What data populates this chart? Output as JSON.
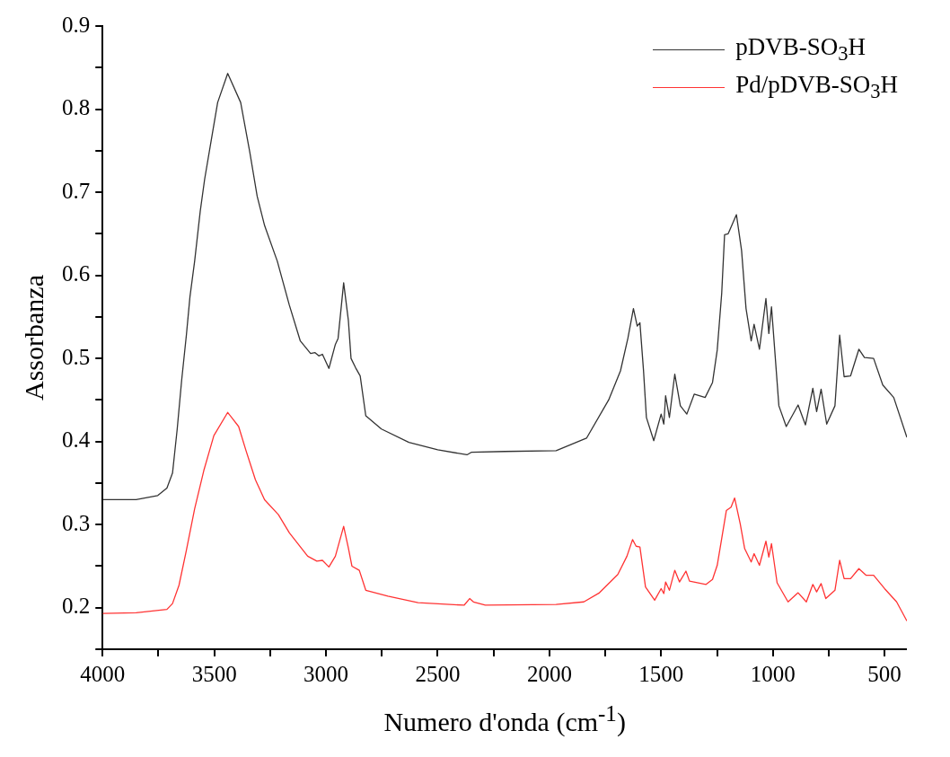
{
  "chart_data": {
    "type": "line",
    "xlabel": "Numero d'onda (cm$^{-1}$)",
    "ylabel": "Assorbanza",
    "xlim": [
      4000,
      400
    ],
    "ylim": [
      0.15,
      0.9
    ],
    "xticks": [
      4000,
      {
        "value": 3750,
        "label": null
      },
      3500,
      {
        "value": 3250,
        "label": null
      },
      3000,
      {
        "value": 2750,
        "label": null
      },
      2500,
      {
        "value": 2250,
        "label": null
      },
      2000,
      {
        "value": 1750,
        "label": null
      },
      1500,
      {
        "value": 1250,
        "label": null
      },
      1000,
      {
        "value": 750,
        "label": null
      },
      500
    ],
    "yticks": [
      {
        "value": 0.15,
        "label": null
      },
      0.2,
      {
        "value": 0.25,
        "label": null
      },
      0.3,
      {
        "value": 0.35,
        "label": null
      },
      0.4,
      {
        "value": 0.45,
        "label": null
      },
      0.5,
      {
        "value": 0.55,
        "label": null
      },
      0.6,
      {
        "value": 0.65,
        "label": null
      },
      0.7,
      {
        "value": 0.75,
        "label": null
      },
      0.8,
      {
        "value": 0.85,
        "label": null
      },
      0.9
    ],
    "legend": "top right",
    "marker": "none",
    "series": [
      {
        "name": "pDVB-SO$_{3}$H",
        "color": "#333333",
        "x": [
          4000,
          3850,
          3753,
          3712,
          3687,
          3666,
          3646,
          3625,
          3609,
          3588,
          3563,
          3543,
          3514,
          3485,
          3440,
          3382,
          3341,
          3308,
          3275,
          3218,
          3164,
          3115,
          3069,
          3049,
          3032,
          3016,
          2987,
          2958,
          2946,
          2921,
          2900,
          2888,
          2868,
          2847,
          2822,
          2752,
          2629,
          2500,
          2369,
          2350,
          2200,
          1970,
          1834,
          1735,
          1682,
          1649,
          1624,
          1607,
          1595,
          1579,
          1566,
          1533,
          1500,
          1488,
          1480,
          1463,
          1439,
          1414,
          1385,
          1352,
          1303,
          1270,
          1249,
          1229,
          1216,
          1200,
          1163,
          1140,
          1120,
          1097,
          1084,
          1060,
          1031,
          1018,
          1006,
          973,
          940,
          887,
          854,
          821,
          804,
          784,
          759,
          722,
          701,
          681,
          652,
          615,
          590,
          549,
          508,
          459,
          400
        ],
        "values": [
          0.33,
          0.33,
          0.335,
          0.344,
          0.362,
          0.415,
          0.474,
          0.528,
          0.574,
          0.617,
          0.677,
          0.716,
          0.762,
          0.808,
          0.843,
          0.808,
          0.748,
          0.695,
          0.66,
          0.617,
          0.564,
          0.521,
          0.506,
          0.507,
          0.503,
          0.505,
          0.488,
          0.517,
          0.524,
          0.591,
          0.546,
          0.5,
          0.489,
          0.479,
          0.431,
          0.415,
          0.399,
          0.39,
          0.384,
          0.387,
          0.388,
          0.389,
          0.404,
          0.45,
          0.485,
          0.524,
          0.56,
          0.539,
          0.543,
          0.486,
          0.429,
          0.401,
          0.433,
          0.421,
          0.455,
          0.429,
          0.481,
          0.443,
          0.433,
          0.457,
          0.453,
          0.471,
          0.51,
          0.578,
          0.649,
          0.65,
          0.673,
          0.63,
          0.56,
          0.521,
          0.541,
          0.511,
          0.572,
          0.53,
          0.562,
          0.443,
          0.418,
          0.444,
          0.42,
          0.464,
          0.436,
          0.463,
          0.421,
          0.443,
          0.528,
          0.478,
          0.479,
          0.511,
          0.501,
          0.5,
          0.468,
          0.453,
          0.405
        ]
      },
      {
        "name": "Pd/pDVB-SO$_{3}$H",
        "color": "#ff3333",
        "x": [
          4000,
          3850,
          3712,
          3687,
          3658,
          3625,
          3588,
          3547,
          3502,
          3440,
          3391,
          3358,
          3316,
          3275,
          3213,
          3164,
          3082,
          3041,
          3016,
          2987,
          2958,
          2921,
          2900,
          2884,
          2851,
          2822,
          2723,
          2588,
          2382,
          2357,
          2340,
          2287,
          1970,
          1846,
          1776,
          1694,
          1653,
          1628,
          1612,
          1595,
          1570,
          1529,
          1500,
          1488,
          1480,
          1463,
          1439,
          1418,
          1389,
          1373,
          1299,
          1270,
          1249,
          1229,
          1208,
          1187,
          1171,
          1146,
          1126,
          1097,
          1084,
          1060,
          1031,
          1018,
          1006,
          981,
          932,
          887,
          850,
          821,
          804,
          784,
          763,
          722,
          701,
          681,
          652,
          615,
          582,
          549,
          500,
          446,
          400
        ],
        "values": [
          0.193,
          0.194,
          0.198,
          0.205,
          0.227,
          0.269,
          0.319,
          0.365,
          0.407,
          0.435,
          0.418,
          0.389,
          0.354,
          0.33,
          0.312,
          0.29,
          0.262,
          0.256,
          0.257,
          0.249,
          0.262,
          0.298,
          0.272,
          0.25,
          0.245,
          0.221,
          0.214,
          0.206,
          0.203,
          0.211,
          0.207,
          0.203,
          0.204,
          0.207,
          0.218,
          0.24,
          0.262,
          0.282,
          0.274,
          0.273,
          0.225,
          0.209,
          0.223,
          0.217,
          0.231,
          0.221,
          0.245,
          0.231,
          0.244,
          0.232,
          0.228,
          0.234,
          0.251,
          0.283,
          0.317,
          0.321,
          0.332,
          0.301,
          0.271,
          0.255,
          0.265,
          0.251,
          0.28,
          0.261,
          0.277,
          0.23,
          0.207,
          0.218,
          0.207,
          0.228,
          0.219,
          0.229,
          0.211,
          0.221,
          0.257,
          0.235,
          0.235,
          0.247,
          0.239,
          0.239,
          0.223,
          0.207,
          0.184
        ]
      }
    ]
  }
}
